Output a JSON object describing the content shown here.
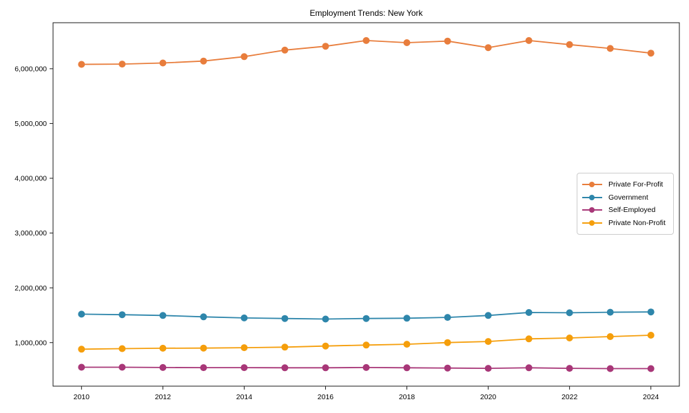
{
  "title": "Employment Trends: New York",
  "colors": {
    "background": "#ffffff",
    "axis": "#1a1a1a",
    "tick_text": "#1a1a1a",
    "legend_border": "#cccccc",
    "private_for_profit": "#E87D3C",
    "government": "#2E86AB",
    "self_employed": "#A83778",
    "private_non_profit": "#F59E0B"
  },
  "chart_data": {
    "type": "line",
    "title": "Employment Trends: New York",
    "xlabel": "",
    "ylabel": "",
    "grid": false,
    "legend_position": "center right",
    "x": [
      2010,
      2011,
      2012,
      2013,
      2014,
      2015,
      2016,
      2017,
      2018,
      2019,
      2020,
      2021,
      2022,
      2023,
      2024
    ],
    "x_ticks": [
      2010,
      2012,
      2014,
      2016,
      2018,
      2020,
      2022,
      2024
    ],
    "x_tick_labels": [
      "2010",
      "2012",
      "2014",
      "2016",
      "2018",
      "2020",
      "2022",
      "2024"
    ],
    "y_ticks": [
      1000000,
      2000000,
      3000000,
      4000000,
      5000000,
      6000000
    ],
    "y_tick_labels": [
      "1,000,000",
      "2,000,000",
      "3,000,000",
      "4,000,000",
      "5,000,000",
      "6,000,000"
    ],
    "xlim": [
      2009.3,
      2024.7
    ],
    "ylim": [
      205000,
      6840000
    ],
    "series": [
      {
        "name": "Private For-Profit",
        "color": "#E87D3C",
        "values": [
          6080000,
          6085000,
          6105000,
          6140000,
          6220000,
          6340000,
          6410000,
          6515000,
          6475000,
          6505000,
          6385000,
          6515000,
          6440000,
          6370000,
          6285000
        ]
      },
      {
        "name": "Government",
        "color": "#2E86AB",
        "values": [
          1520000,
          1510000,
          1495000,
          1470000,
          1450000,
          1440000,
          1430000,
          1440000,
          1445000,
          1460000,
          1495000,
          1550000,
          1545000,
          1555000,
          1560000
        ]
      },
      {
        "name": "Self-Employed",
        "color": "#A83778",
        "values": [
          550000,
          550000,
          545000,
          543000,
          543000,
          540000,
          540000,
          545000,
          540000,
          535000,
          530000,
          540000,
          530000,
          525000,
          525000
        ]
      },
      {
        "name": "Private Non-Profit",
        "color": "#F59E0B",
        "values": [
          880000,
          890000,
          898000,
          900000,
          908000,
          918000,
          938000,
          955000,
          970000,
          1000000,
          1020000,
          1068000,
          1085000,
          1110000,
          1135000
        ]
      }
    ]
  }
}
